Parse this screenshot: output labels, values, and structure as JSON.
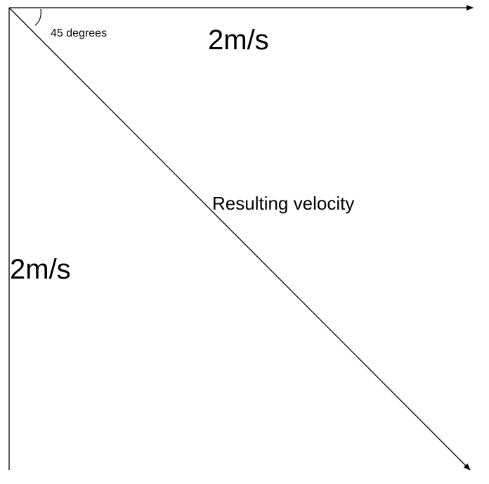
{
  "labels": {
    "angle": "45 degrees",
    "horizontal": "2m/s",
    "vertical": "2m/s",
    "resultant": "Resulting velocity"
  }
}
